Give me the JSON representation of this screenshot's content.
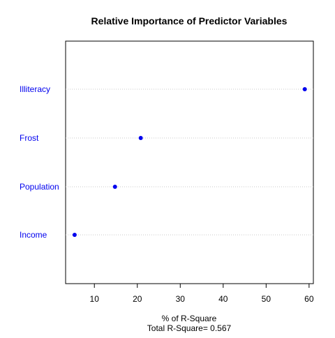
{
  "chart_data": {
    "type": "scatter",
    "title": "Relative Importance of Predictor Variables",
    "xlabel": "% of R-Square",
    "subtitle": "Total R-Square= 0.567",
    "ylabel": "",
    "xlim": [
      3.3,
      61
    ],
    "x_ticks": [
      10,
      20,
      30,
      40,
      50,
      60
    ],
    "categories": [
      "Illiteracy",
      "Frost",
      "Population",
      "Income"
    ],
    "values": [
      59.0,
      20.8,
      14.8,
      5.4
    ],
    "grid": "dotted horizontal guide lines",
    "point_color": "#0000ee",
    "label_color": "#0000ee",
    "guide_color": "#c8c8c8"
  }
}
